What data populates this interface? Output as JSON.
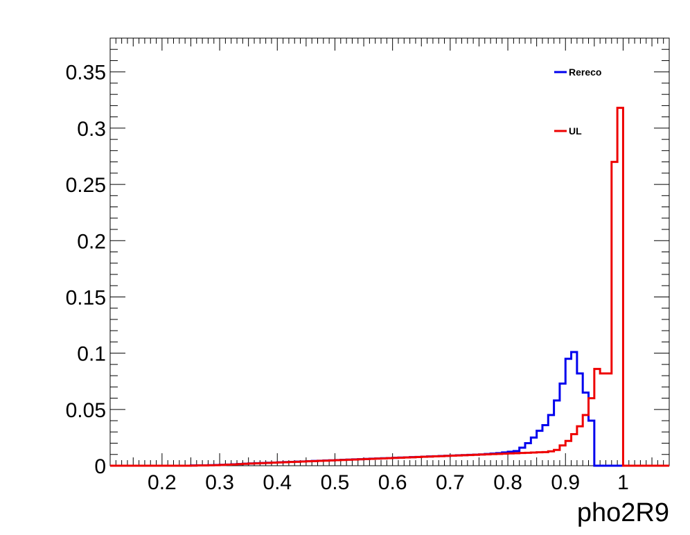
{
  "chart_data": {
    "type": "line",
    "title": "",
    "xlabel": "pho2R9",
    "ylabel": "",
    "xlim": [
      0.11,
      1.08
    ],
    "ylim": [
      0,
      0.38
    ],
    "grid": false,
    "legend_position": "top-right",
    "x_ticks": [
      0.2,
      0.3,
      0.4,
      0.5,
      0.6,
      0.7,
      0.8,
      0.9,
      1
    ],
    "x_tick_labels": [
      "0.2",
      "0.3",
      "0.4",
      "0.5",
      "0.6",
      "0.7",
      "0.8",
      "0.9",
      "1"
    ],
    "y_ticks": [
      0,
      0.05,
      0.1,
      0.15,
      0.2,
      0.25,
      0.3,
      0.35
    ],
    "y_tick_labels": [
      "0",
      "0.05",
      "0.1",
      "0.15",
      "0.2",
      "0.25",
      "0.3",
      "0.35"
    ],
    "bin_width": 0.01,
    "bin_start": 0.11,
    "series": [
      {
        "name": "Rereco",
        "color": "#0000ee",
        "values": [
          0,
          0,
          0,
          0,
          0,
          0,
          0,
          0,
          0,
          0,
          0,
          0,
          0,
          0,
          0.0002,
          0.0003,
          0.0003,
          0.0005,
          0.0006,
          0.0008,
          0.001,
          0.0012,
          0.0015,
          0.0018,
          0.002,
          0.0022,
          0.0024,
          0.0026,
          0.0028,
          0.003,
          0.0032,
          0.0034,
          0.0036,
          0.0038,
          0.004,
          0.0042,
          0.0044,
          0.0046,
          0.0048,
          0.005,
          0.0052,
          0.0054,
          0.0056,
          0.0058,
          0.006,
          0.0062,
          0.0064,
          0.0066,
          0.0068,
          0.007,
          0.0072,
          0.0074,
          0.0076,
          0.0078,
          0.008,
          0.0082,
          0.0084,
          0.0086,
          0.0088,
          0.009,
          0.0092,
          0.0094,
          0.0096,
          0.0098,
          0.01,
          0.0104,
          0.0108,
          0.0112,
          0.0118,
          0.0124,
          0.013,
          0.016,
          0.02,
          0.025,
          0.031,
          0.036,
          0.045,
          0.058,
          0.073,
          0.095,
          0.101,
          0.082,
          0.065,
          0.04,
          0,
          0,
          0,
          0,
          0,
          0,
          0,
          0,
          0,
          0,
          0,
          0,
          0
        ]
      },
      {
        "name": "UL",
        "color": "#ee0000",
        "values": [
          0,
          0,
          0,
          0,
          0,
          0,
          0,
          0,
          0,
          0,
          0,
          0,
          0,
          0,
          0.0001,
          0.0002,
          0.0002,
          0.0004,
          0.0005,
          0.0007,
          0.0009,
          0.0011,
          0.0014,
          0.0017,
          0.0019,
          0.0021,
          0.0023,
          0.0025,
          0.0027,
          0.0029,
          0.0031,
          0.0033,
          0.0035,
          0.0037,
          0.0039,
          0.0041,
          0.0043,
          0.0045,
          0.0047,
          0.0049,
          0.0051,
          0.0053,
          0.0055,
          0.0057,
          0.0059,
          0.0061,
          0.0063,
          0.0065,
          0.0067,
          0.0069,
          0.0071,
          0.0073,
          0.0075,
          0.0077,
          0.0079,
          0.0081,
          0.0083,
          0.0085,
          0.0087,
          0.0089,
          0.0091,
          0.0093,
          0.0095,
          0.0097,
          0.0099,
          0.0101,
          0.0103,
          0.0105,
          0.0107,
          0.0109,
          0.0111,
          0.0113,
          0.0115,
          0.0117,
          0.0119,
          0.0121,
          0.0128,
          0.014,
          0.018,
          0.022,
          0.028,
          0.035,
          0.045,
          0.06,
          0.086,
          0.082,
          0.082,
          0.27,
          0.318,
          0,
          0,
          0,
          0,
          0,
          0,
          0,
          0
        ]
      }
    ]
  }
}
